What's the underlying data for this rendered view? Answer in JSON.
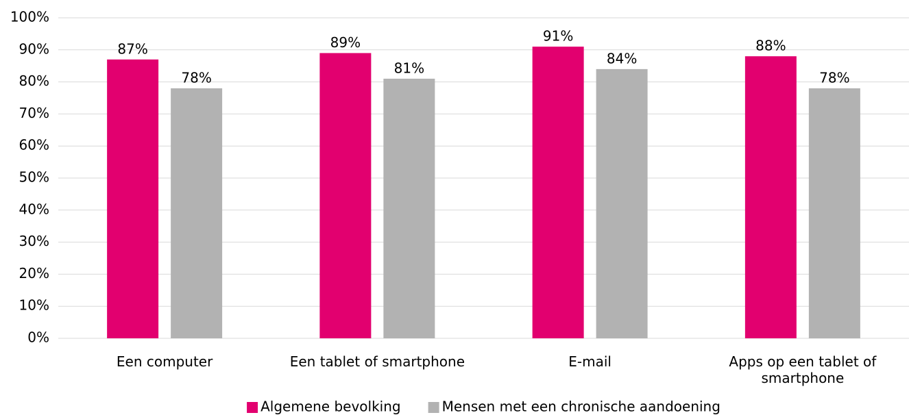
{
  "chart_data": {
    "type": "bar",
    "categories": [
      "Een computer",
      "Een tablet of smartphone",
      "E-mail",
      "Apps op een tablet of smartphone"
    ],
    "series": [
      {
        "name": "Algemene bevolking",
        "color": "#e2006f",
        "values": [
          87,
          89,
          91,
          88
        ],
        "value_labels": [
          "87%",
          "89%",
          "91%",
          "88%"
        ]
      },
      {
        "name": "Mensen met een chronische aandoening",
        "color": "#b2b2b2",
        "values": [
          78,
          81,
          84,
          78
        ],
        "value_labels": [
          "78%",
          "81%",
          "84%",
          "78%"
        ]
      }
    ],
    "ylim": [
      0,
      100
    ],
    "yticks": [
      {
        "value": 0,
        "label": "0%"
      },
      {
        "value": 10,
        "label": "10%"
      },
      {
        "value": 20,
        "label": "20%"
      },
      {
        "value": 30,
        "label": "30%"
      },
      {
        "value": 40,
        "label": "40%"
      },
      {
        "value": 50,
        "label": "50%"
      },
      {
        "value": 60,
        "label": "60%"
      },
      {
        "value": 70,
        "label": "70%"
      },
      {
        "value": 80,
        "label": "80%"
      },
      {
        "value": 90,
        "label": "90%"
      },
      {
        "value": 100,
        "label": "100%"
      }
    ],
    "grid": true,
    "legend": "bottom"
  }
}
